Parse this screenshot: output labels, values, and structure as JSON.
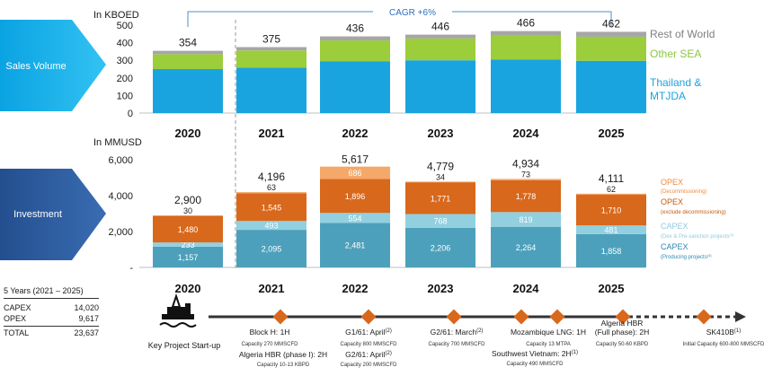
{
  "colors": {
    "arrow_blue": "#12aee8",
    "arrow_navy": "#2b5b9e",
    "thailand": "#1aa4df",
    "other_sea": "#9ccd3a",
    "rest_of_world": "#a6a6a6",
    "capex_producing": "#4da0bb",
    "capex_dev": "#92d0e0",
    "opex_excl": "#d8681c",
    "opex_decom": "#f4a96a",
    "milestone": "#d8681c"
  },
  "icons": {
    "project": "oil-rig-icon"
  },
  "sales": {
    "label": "Sales Volume",
    "unit": "In KBOED",
    "cagr": "CAGR +6%",
    "legend": {
      "rest_of_world": "Rest of World",
      "other_sea": "Other SEA",
      "thailand": "Thailand &\nMTJDA"
    }
  },
  "investment": {
    "label": "Investment",
    "unit": "In MMUSD",
    "legend": {
      "opex_decom": "OPEX",
      "opex_decom_sub": "(Decommissioning)",
      "opex_excl": "OPEX",
      "opex_excl_sub": "(exclude decommissioning)",
      "capex_dev": "CAPEX",
      "capex_dev_sub": "(Dev & Pre-sanction projects",
      "capex_dev_sup": "(3)",
      "capex_prod": "CAPEX",
      "capex_prod_sub": "(Producing projects",
      "capex_prod_sup": "(4)"
    }
  },
  "years": [
    "2020",
    "2021",
    "2022",
    "2023",
    "2024",
    "2025"
  ],
  "chart_data": [
    {
      "type": "bar",
      "stacked": true,
      "ylabel": "In KBOED",
      "ylim": [
        0,
        500
      ],
      "yticks": [
        "500",
        "400",
        "300",
        "200",
        "100",
        "0"
      ],
      "categories": [
        "2020",
        "2021",
        "2022",
        "2023",
        "2024",
        "2025"
      ],
      "series": [
        {
          "name": "Thailand & MTJDA",
          "values": [
            250,
            258,
            295,
            300,
            305,
            297
          ]
        },
        {
          "name": "Other SEA",
          "values": [
            85,
            98,
            118,
            124,
            136,
            137
          ]
        },
        {
          "name": "Rest of World",
          "values": [
            19,
            19,
            23,
            22,
            25,
            28
          ]
        }
      ],
      "totals": [
        "354",
        "375",
        "436",
        "446",
        "466",
        "462"
      ],
      "annotation": "CAGR +6%"
    },
    {
      "type": "bar",
      "stacked": true,
      "ylabel": "In MMUSD",
      "ylim": [
        0,
        6000
      ],
      "yticks": [
        "6,000",
        "4,000",
        "2,000",
        "-"
      ],
      "categories": [
        "2020",
        "2021",
        "2022",
        "2023",
        "2024",
        "2025"
      ],
      "series": [
        {
          "name": "CAPEX (Producing projects)",
          "values": [
            1157,
            2095,
            2481,
            2206,
            2264,
            1858
          ],
          "labels": [
            "1,157",
            "2,095",
            "2,481",
            "2,206",
            "2,264",
            "1,858"
          ]
        },
        {
          "name": "CAPEX (Dev & Pre-sanction projects)",
          "values": [
            233,
            493,
            554,
            768,
            819,
            481
          ],
          "labels": [
            "233",
            "493",
            "554",
            "768",
            "819",
            "481"
          ]
        },
        {
          "name": "OPEX (exclude decommissioning)",
          "values": [
            1480,
            1545,
            1896,
            1771,
            1778,
            1710
          ],
          "labels": [
            "1,480",
            "1,545",
            "1,896",
            "1,771",
            "1,778",
            "1,710"
          ]
        },
        {
          "name": "OPEX (Decommissioning)",
          "values": [
            30,
            63,
            686,
            34,
            73,
            62
          ],
          "labels": [
            "30",
            "63",
            "686",
            "34",
            "73",
            "62"
          ]
        }
      ],
      "totals": [
        "2,900",
        "4,196",
        "5,617",
        "4,779",
        "4,934",
        "4,111"
      ]
    }
  ],
  "five_year": {
    "title": "5 Years (2021 – 2025)",
    "rows": [
      {
        "label": "CAPEX",
        "value": "14,020"
      },
      {
        "label": "OPEX",
        "value": "9,617"
      },
      {
        "label": "TOTAL",
        "value": "23,637"
      }
    ]
  },
  "timeline": {
    "label": "Key Project Start-up",
    "above": [
      {
        "name": "Block H: 1H",
        "sup": "",
        "cap": "Capacity 270 MMSCFD"
      },
      {
        "name": "G1/61: April",
        "sup": "(2)",
        "cap": "Capacity 800 MMSCFD"
      },
      {
        "name": "G2/61: March",
        "sup": "(2)",
        "cap": "Capacity 700 MMSCFD"
      },
      {
        "name": "Mozambique LNG: 1H",
        "sup": "",
        "cap": "Capacity 13 MTPA"
      },
      {
        "name": "Algeria HBR\n(Full phase): 2H",
        "sup": "",
        "cap": "Capacity 50-60 KBPD"
      },
      {
        "name": "SK410B",
        "sup": "(1)",
        "cap": "Initial Capacity 600-800 MMSCFD"
      }
    ],
    "below": [
      {
        "name": "Algeria HBR  (phase I): 2H",
        "sup": "",
        "cap": "Capacity 10-13 KBPD"
      },
      {
        "name": "G2/61: April",
        "sup": "(2)",
        "cap": "Capacity 200 MMSCFD"
      },
      {
        "name": "Southwest Vietnam: 2H",
        "sup": "(1)",
        "cap": "Capacity 490 MMSCFD"
      }
    ]
  }
}
